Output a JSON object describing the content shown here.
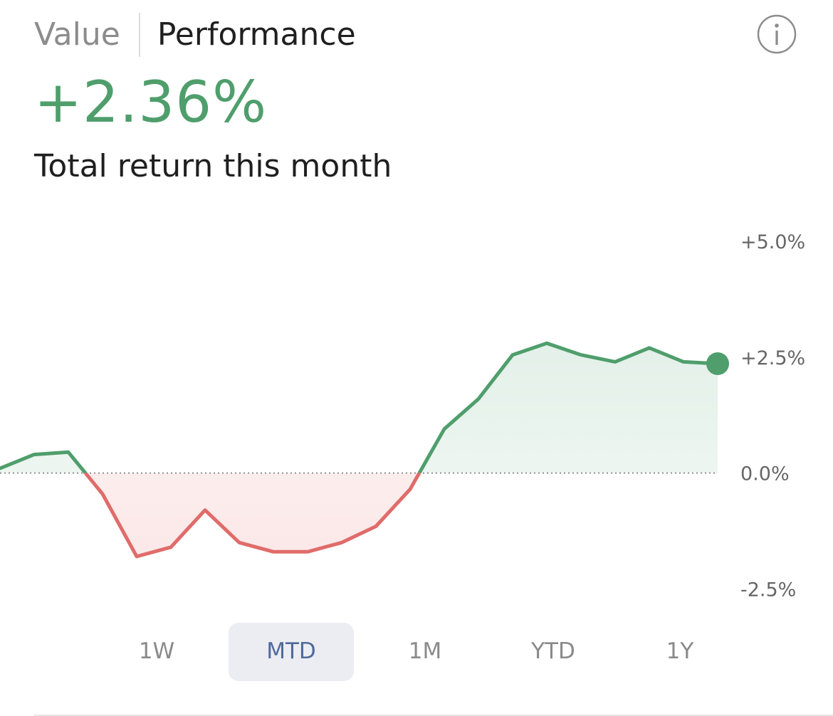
{
  "tabs": {
    "value": "Value",
    "performance": "Performance",
    "selected": "Performance"
  },
  "info_icon": "info-circle-icon",
  "summary": {
    "return_value": "+2.36%",
    "subtitle": "Total return this month"
  },
  "colors": {
    "positive": "#4f9e6c",
    "negative": "#e06c6a",
    "positive_fill": "#eaf4ee",
    "negative_fill": "#fdeeee",
    "active_range_bg": "#ecedf2",
    "active_range_text": "#4f6a9c"
  },
  "chart_data": {
    "type": "area",
    "y_ticks": [
      "+5.0%",
      "+2.5%",
      "0.0%",
      "-2.5%"
    ],
    "y_tick_values": [
      5.0,
      2.5,
      0.0,
      -2.5
    ],
    "ylim": [
      -3.0,
      5.6
    ],
    "baseline": 0.0,
    "grid": false,
    "series": [
      {
        "values": [
          0.1,
          0.4,
          0.45,
          -0.45,
          -1.8,
          -1.6,
          -0.8,
          -1.5,
          -1.7,
          -1.7,
          -1.5,
          -1.15,
          -0.35,
          0.95,
          1.6,
          2.55,
          2.8,
          2.55,
          2.4,
          2.7,
          2.4,
          2.36
        ]
      }
    ],
    "last_point_marker": true
  },
  "ranges": {
    "items": [
      "1W",
      "MTD",
      "1M",
      "YTD",
      "1Y"
    ],
    "selected": "MTD"
  }
}
